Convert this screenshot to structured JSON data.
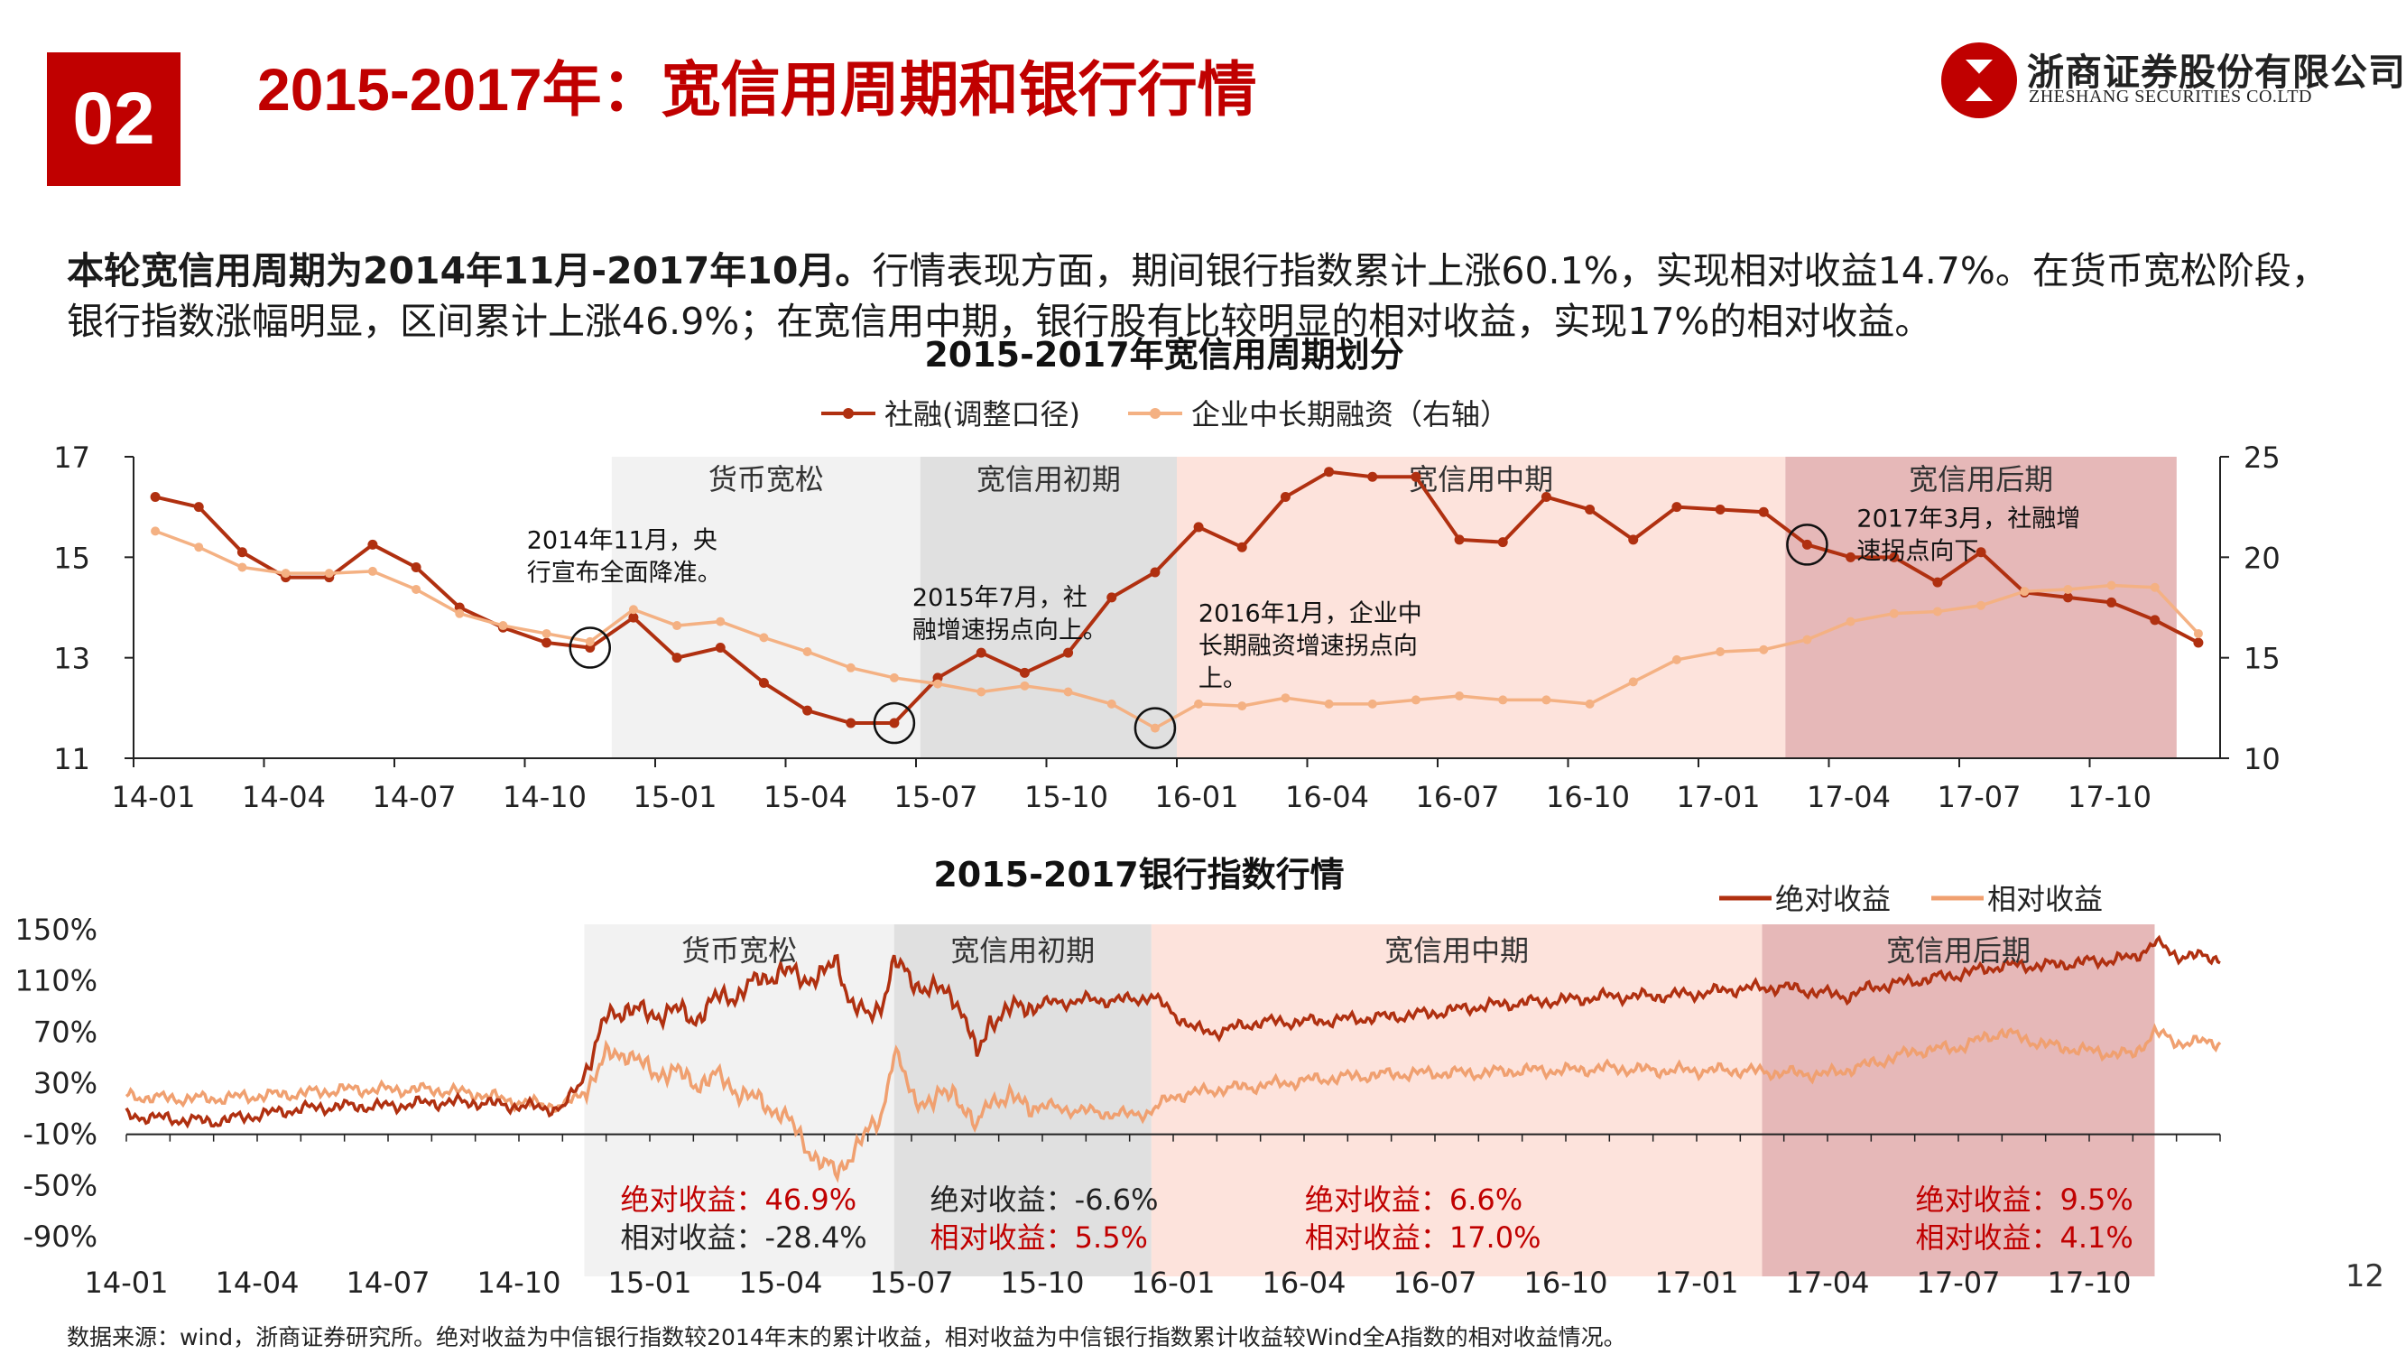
{
  "header": {
    "section_number": "02",
    "title": "2015-2017年：宽信用周期和银行行情"
  },
  "logo": {
    "name_cn": "浙商证券股份有限公司",
    "name_en": "ZHESHANG SECURITIES CO.LTD"
  },
  "summary": {
    "bold": "本轮宽信用周期为2014年11月-2017年10月。",
    "rest": "行情表现方面，期间银行指数累计上涨60.1%，实现相对收益14.7%。在货币宽松阶段，银行指数涨幅明显，区间累计上涨46.9%；在宽信用中期，银行股有比较明显的相对收益，实现17%的相对收益。"
  },
  "colors": {
    "brand_red": "#c00000",
    "dark_red": "#b03010",
    "light_orange": "#f0a070",
    "peach": "#f4b183",
    "loose_band": "#f2f2f2",
    "early_band": "#e0e0e0",
    "mid_band": "#fde3dc",
    "late_band": "#e6b8b8"
  },
  "chart_data": [
    {
      "type": "line",
      "title": "2015-2017年宽信用周期划分",
      "categories": [
        "14-01",
        "14-02",
        "14-03",
        "14-04",
        "14-05",
        "14-06",
        "14-07",
        "14-08",
        "14-09",
        "14-10",
        "14-11",
        "14-12",
        "15-01",
        "15-02",
        "15-03",
        "15-04",
        "15-05",
        "15-06",
        "15-07",
        "15-08",
        "15-09",
        "15-10",
        "15-11",
        "15-12",
        "16-01",
        "16-02",
        "16-03",
        "16-04",
        "16-05",
        "16-06",
        "16-07",
        "16-08",
        "16-09",
        "16-10",
        "16-11",
        "16-12",
        "17-01",
        "17-02",
        "17-03",
        "17-04",
        "17-05",
        "17-06",
        "17-07",
        "17-08",
        "17-09",
        "17-10",
        "17-11",
        "17-12"
      ],
      "x_tick_labels": [
        "14-01",
        "14-04",
        "14-07",
        "14-10",
        "15-01",
        "15-04",
        "15-07",
        "15-10",
        "16-01",
        "16-04",
        "16-07",
        "16-10",
        "17-01",
        "17-04",
        "17-07",
        "17-10"
      ],
      "left_axis": {
        "ylim": [
          11,
          17
        ],
        "ticks": [
          "17",
          "15",
          "13",
          "11"
        ]
      },
      "right_axis": {
        "ylim": [
          10,
          25
        ],
        "ticks": [
          "25",
          "20",
          "15",
          "10"
        ]
      },
      "series": [
        {
          "name": "社融(调整口径)",
          "axis": "left",
          "color": "#b03010",
          "values": [
            16.2,
            16.0,
            15.1,
            14.6,
            14.6,
            15.25,
            14.8,
            14.0,
            13.6,
            13.3,
            13.2,
            13.8,
            13.0,
            13.2,
            12.5,
            11.95,
            11.7,
            11.7,
            12.6,
            13.1,
            12.7,
            13.1,
            14.2,
            14.7,
            15.6,
            15.2,
            16.2,
            16.7,
            16.6,
            16.6,
            15.35,
            15.3,
            16.2,
            15.95,
            15.35,
            16.0,
            15.95,
            15.9,
            15.25,
            15.0,
            15.0,
            14.5,
            15.1,
            14.3,
            14.2,
            14.1,
            13.75,
            13.3
          ]
        },
        {
          "name": "企业中长期融资（右轴）",
          "axis": "right",
          "color": "#f4b183",
          "values": [
            21.3,
            20.5,
            19.5,
            19.2,
            19.2,
            19.3,
            18.4,
            17.2,
            16.6,
            16.2,
            15.8,
            17.4,
            16.6,
            16.8,
            16.0,
            15.3,
            14.5,
            14.0,
            13.7,
            13.3,
            13.6,
            13.3,
            12.7,
            11.5,
            12.7,
            12.6,
            13.0,
            12.7,
            12.7,
            12.9,
            13.1,
            12.9,
            12.9,
            12.7,
            13.8,
            14.9,
            15.3,
            15.4,
            15.9,
            16.8,
            17.2,
            17.3,
            17.6,
            18.3,
            18.4,
            18.6,
            18.5,
            16.2
          ]
        }
      ],
      "periods": [
        {
          "label": "货币宽松",
          "start_index": 10.5,
          "end_index": 17.6,
          "color": "#f2f2f2"
        },
        {
          "label": "宽信用初期",
          "start_index": 17.6,
          "end_index": 23.5,
          "color": "#e0e0e0"
        },
        {
          "label": "宽信用中期",
          "start_index": 23.5,
          "end_index": 37.5,
          "color": "#fde3dc"
        },
        {
          "label": "宽信用后期",
          "start_index": 37.5,
          "end_index": 46.5,
          "color": "#e6b8b8"
        }
      ],
      "annotations": [
        {
          "lines": [
            "2014年11月，央",
            "行宣布全面降准。"
          ],
          "index": 10,
          "series": 0
        },
        {
          "lines": [
            "2015年7月，社",
            "融增速拐点向上。"
          ],
          "index": 17,
          "series": 0
        },
        {
          "lines": [
            "2016年1月，企业中",
            "长期融资增速拐点向",
            "上。"
          ],
          "index": 23,
          "series": 1
        },
        {
          "lines": [
            "2017年3月，社融增",
            "速拐点向下"
          ],
          "index": 38,
          "series": 0
        }
      ]
    },
    {
      "type": "line",
      "title": "2015-2017银行指数行情",
      "x_tick_labels": [
        "14-01",
        "14-04",
        "14-07",
        "14-10",
        "15-01",
        "15-04",
        "15-07",
        "15-10",
        "16-01",
        "16-04",
        "16-07",
        "16-10",
        "17-01",
        "17-04",
        "17-07",
        "17-10"
      ],
      "ylim": [
        -90,
        150
      ],
      "y_ticks": [
        "150%",
        "110%",
        "70%",
        "30%",
        "-10%",
        "-50%",
        "-90%"
      ],
      "series": [
        {
          "name": "绝对收益",
          "color": "#b03010",
          "keyframes": [
            [
              0,
              5
            ],
            [
              1,
              2
            ],
            [
              2,
              0
            ],
            [
              3,
              5
            ],
            [
              4,
              10
            ],
            [
              5,
              12
            ],
            [
              6,
              12
            ],
            [
              7,
              15
            ],
            [
              8,
              15
            ],
            [
              9,
              12
            ],
            [
              10,
              10
            ],
            [
              10.4,
              30
            ],
            [
              11,
              80
            ],
            [
              11.5,
              90
            ],
            [
              12,
              82
            ],
            [
              12.5,
              88
            ],
            [
              13,
              80
            ],
            [
              13.5,
              95
            ],
            [
              14,
              100
            ],
            [
              14.5,
              110
            ],
            [
              15,
              118
            ],
            [
              15.5,
              112
            ],
            [
              16,
              115
            ],
            [
              16.3,
              125
            ],
            [
              16.6,
              95
            ],
            [
              17,
              80
            ],
            [
              17.3,
              92
            ],
            [
              17.6,
              125
            ],
            [
              18,
              110
            ],
            [
              18.5,
              103
            ],
            [
              19,
              98
            ],
            [
              19.3,
              75
            ],
            [
              19.5,
              48
            ],
            [
              19.8,
              80
            ],
            [
              20.5,
              90
            ],
            [
              21,
              92
            ],
            [
              22,
              95
            ],
            [
              23,
              95
            ],
            [
              23.5,
              98
            ],
            [
              24,
              85
            ],
            [
              24.5,
              72
            ],
            [
              25,
              70
            ],
            [
              26,
              78
            ],
            [
              27,
              78
            ],
            [
              28,
              80
            ],
            [
              29,
              82
            ],
            [
              30,
              85
            ],
            [
              31,
              90
            ],
            [
              32,
              93
            ],
            [
              33,
              95
            ],
            [
              34,
              98
            ],
            [
              35,
              98
            ],
            [
              36,
              100
            ],
            [
              37,
              104
            ],
            [
              38,
              105
            ],
            [
              39,
              100
            ],
            [
              39.5,
              98
            ],
            [
              40,
              105
            ],
            [
              41,
              110
            ],
            [
              42,
              115
            ],
            [
              43,
              122
            ],
            [
              44,
              122
            ],
            [
              45,
              125
            ],
            [
              46,
              128
            ],
            [
              46.5,
              140
            ],
            [
              47,
              130
            ],
            [
              48,
              128
            ]
          ]
        },
        {
          "name": "相对收益",
          "color": "#f0a070",
          "keyframes": [
            [
              0,
              20
            ],
            [
              1,
              18
            ],
            [
              2,
              18
            ],
            [
              3,
              20
            ],
            [
              4,
              22
            ],
            [
              5,
              25
            ],
            [
              6,
              25
            ],
            [
              7,
              25
            ],
            [
              8,
              22
            ],
            [
              9,
              15
            ],
            [
              10,
              12
            ],
            [
              10.4,
              20
            ],
            [
              11,
              50
            ],
            [
              11.5,
              55
            ],
            [
              12,
              38
            ],
            [
              12.5,
              40
            ],
            [
              13,
              30
            ],
            [
              13.5,
              35
            ],
            [
              14,
              25
            ],
            [
              14.5,
              15
            ],
            [
              15,
              8
            ],
            [
              15.5,
              -15
            ],
            [
              16,
              -35
            ],
            [
              16.3,
              -40
            ],
            [
              16.6,
              -25
            ],
            [
              17,
              -10
            ],
            [
              17.3,
              5
            ],
            [
              17.6,
              55
            ],
            [
              18,
              20
            ],
            [
              18.5,
              15
            ],
            [
              19,
              25
            ],
            [
              19.3,
              5
            ],
            [
              19.5,
              -8
            ],
            [
              19.8,
              20
            ],
            [
              20.5,
              15
            ],
            [
              21,
              12
            ],
            [
              22,
              8
            ],
            [
              23,
              5
            ],
            [
              23.5,
              8
            ],
            [
              24,
              20
            ],
            [
              25,
              25
            ],
            [
              26,
              28
            ],
            [
              27,
              32
            ],
            [
              28,
              35
            ],
            [
              29,
              37
            ],
            [
              30,
              38
            ],
            [
              31,
              38
            ],
            [
              32,
              40
            ],
            [
              33,
              40
            ],
            [
              34,
              42
            ],
            [
              35,
              40
            ],
            [
              36,
              40
            ],
            [
              37,
              40
            ],
            [
              38,
              38
            ],
            [
              39,
              37
            ],
            [
              40,
              45
            ],
            [
              41,
              55
            ],
            [
              42,
              58
            ],
            [
              43,
              70
            ],
            [
              44,
              60
            ],
            [
              45,
              55
            ],
            [
              46,
              52
            ],
            [
              46.5,
              70
            ],
            [
              47,
              62
            ],
            [
              48,
              62
            ]
          ]
        }
      ],
      "periods": [
        {
          "label": "货币宽松",
          "start_index": 10.5,
          "end_index": 17.6,
          "color": "#f2f2f2",
          "abs_label": "绝对收益：46.9%",
          "rel_label": "相对收益：-28.4%",
          "abs_color": "#c00000",
          "rel_color": "#222222"
        },
        {
          "label": "宽信用初期",
          "start_index": 17.6,
          "end_index": 23.5,
          "color": "#e0e0e0",
          "abs_label": "绝对收益：-6.6%",
          "rel_label": "相对收益：5.5%",
          "abs_color": "#222222",
          "rel_color": "#c00000"
        },
        {
          "label": "宽信用中期",
          "start_index": 23.5,
          "end_index": 37.5,
          "color": "#fde3dc",
          "abs_label": "绝对收益：6.6%",
          "rel_label": "相对收益：17.0%",
          "abs_color": "#c00000",
          "rel_color": "#c00000"
        },
        {
          "label": "宽信用后期",
          "start_index": 37.5,
          "end_index": 46.5,
          "color": "#e6b8b8",
          "abs_label": "绝对收益：9.5%",
          "rel_label": "相对收益：4.1%",
          "abs_color": "#c00000",
          "rel_color": "#c00000"
        }
      ]
    }
  ],
  "page_number": "12",
  "source_note": "数据来源：wind，浙商证券研究所。绝对收益为中信银行指数较2014年末的累计收益，相对收益为中信银行指数累计收益较Wind全A指数的相对收益情况。"
}
